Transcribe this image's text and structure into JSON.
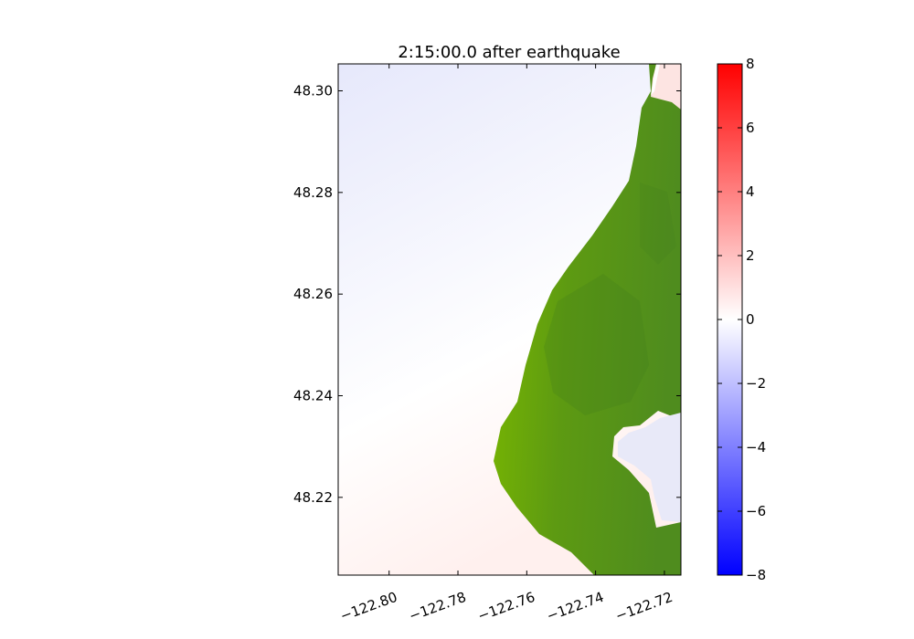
{
  "chart_data": {
    "type": "heatmap",
    "title": "2:15:00.0 after earthquake",
    "xlabel": "",
    "ylabel": "",
    "xlim": [
      -122.8148,
      -122.7152
    ],
    "ylim": [
      48.2047,
      48.3053
    ],
    "x_ticks": [
      -122.8,
      -122.78,
      -122.76,
      -122.74,
      -122.72
    ],
    "x_tick_labels": [
      "−122.80",
      "−122.78",
      "−122.76",
      "−122.74",
      "−122.72"
    ],
    "y_ticks": [
      48.22,
      48.24,
      48.26,
      48.28,
      48.3
    ],
    "y_tick_labels": [
      "48.22",
      "48.24",
      "48.26",
      "48.28",
      "48.30"
    ],
    "colorbar": {
      "range": [
        -8,
        8
      ],
      "ticks": [
        -8,
        -6,
        -4,
        -2,
        0,
        2,
        4,
        6,
        8
      ],
      "tick_labels": [
        "−8",
        "−6",
        "−4",
        "−2",
        "0",
        "2",
        "4",
        "6",
        "8"
      ],
      "colors": {
        "low": "#0000ff",
        "mid": "#ffffff",
        "high": "#ff0000"
      }
    },
    "colors": {
      "land_light": "#7ab800",
      "land_dark": "#4f8c1e",
      "water_north": "#e6e8fb",
      "water_south": "#fff0ee",
      "lagoon": "#e8e9f8"
    }
  }
}
